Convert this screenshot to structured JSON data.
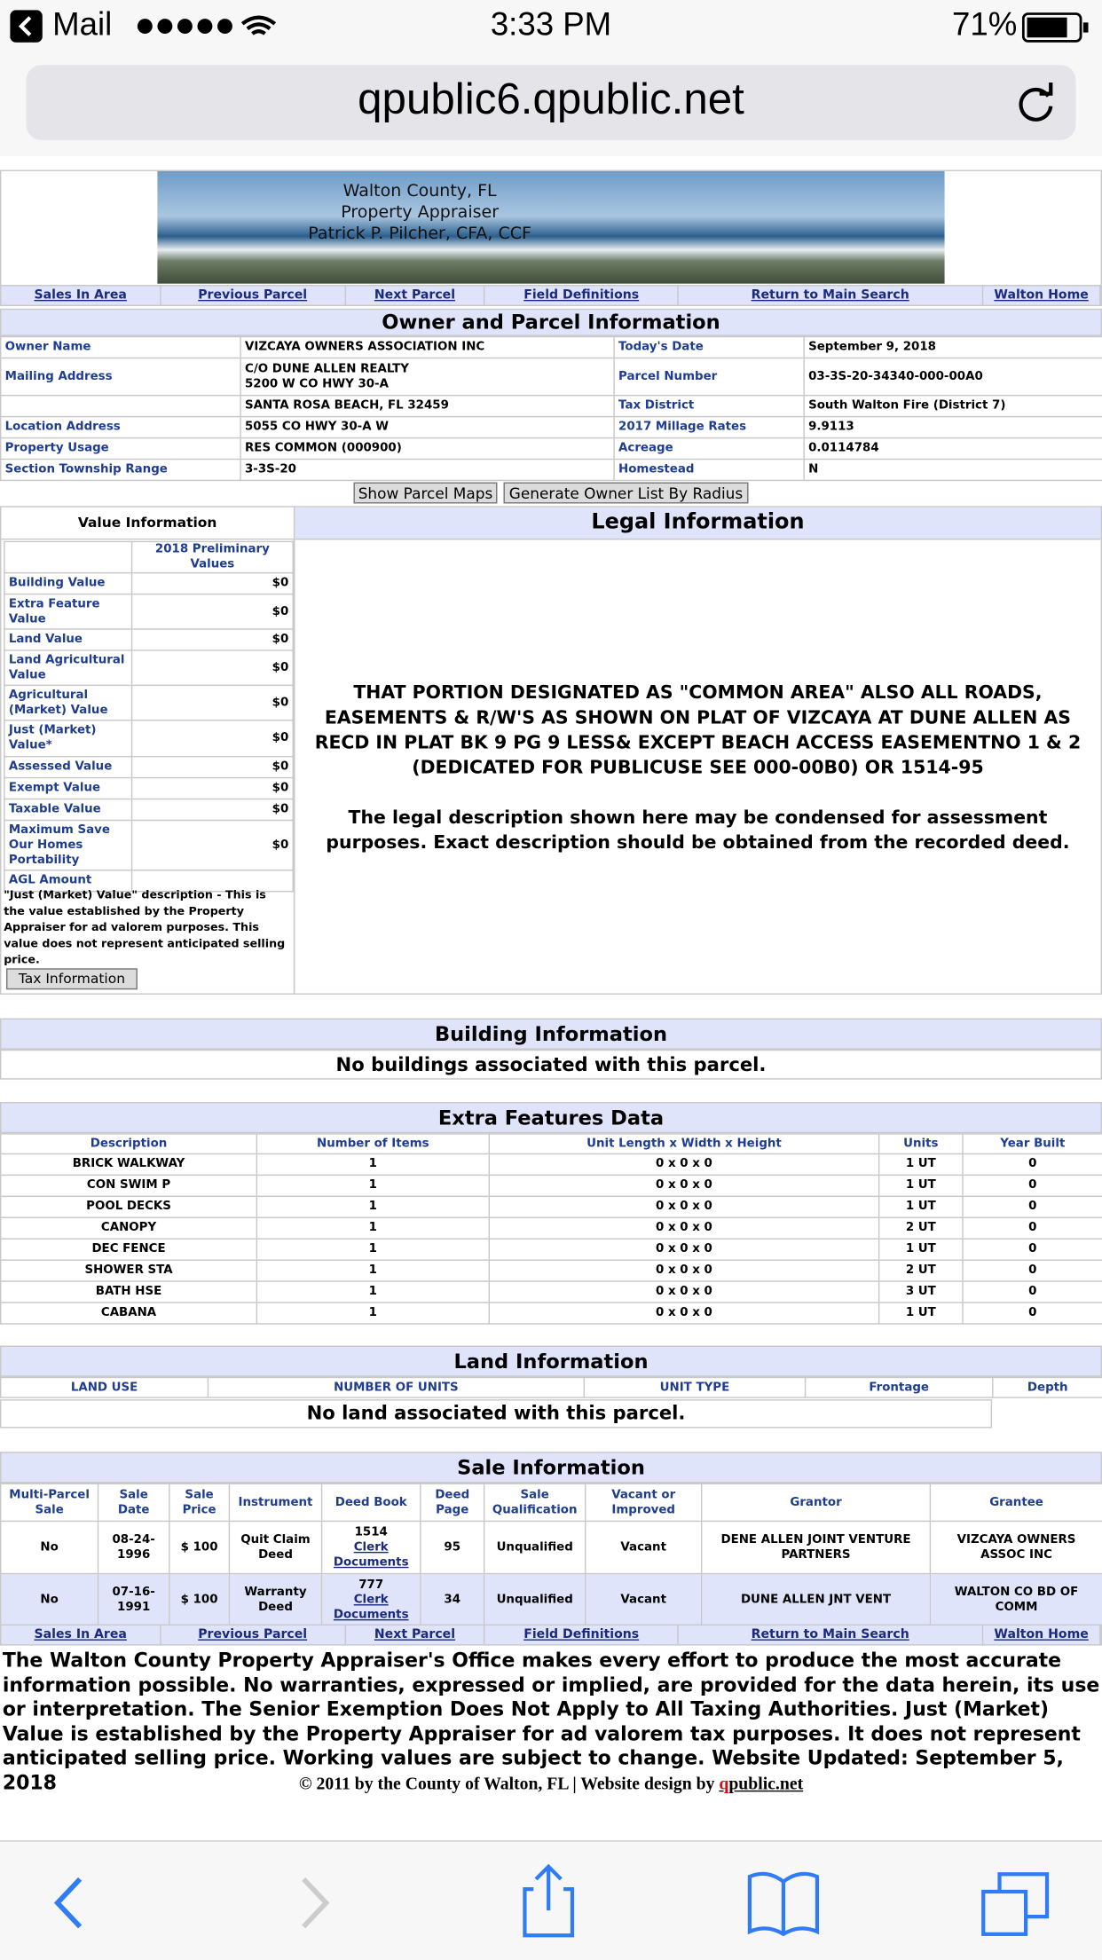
{
  "status_bar": {
    "back_app": "Mail",
    "time": "3:33 PM",
    "battery": "71%"
  },
  "address_bar": {
    "url": "qpublic6.qpublic.net"
  },
  "banner": {
    "lines": [
      "Walton County, FL",
      "Property Appraiser",
      "Patrick P. Pilcher, CFA, CCF"
    ]
  },
  "nav": {
    "links": [
      "Sales In Area",
      "Previous Parcel",
      "Next Parcel",
      "Field Definitions",
      "Return to Main Search",
      "Walton Home"
    ]
  },
  "owner_parcel": {
    "title": "Owner and Parcel Information",
    "rows": [
      [
        "Owner Name",
        "VIZCAYA OWNERS ASSOCIATION INC",
        "Today's Date",
        "September 9, 2018"
      ],
      [
        "Mailing Address",
        "C/O DUNE ALLEN REALTY\n5200 W CO HWY 30-A",
        "Parcel Number",
        "03-3S-20-34340-000-00A0"
      ],
      [
        null,
        "SANTA ROSA BEACH, FL 32459",
        "Tax District",
        "South Walton Fire (District 7)"
      ],
      [
        "Location Address",
        "5055 CO HWY 30-A W",
        "2017 Millage Rates",
        "9.9113"
      ],
      [
        "Property Usage",
        "RES COMMON (000900)",
        "Acreage",
        "0.0114784"
      ],
      [
        "Section Township Range",
        "3-3S-20",
        "Homestead",
        "N"
      ]
    ]
  },
  "buttons": [
    "Show Parcel Maps",
    "Generate Owner List By Radius"
  ],
  "value_information": {
    "title": "Value Information",
    "column_header": "2018 Preliminary Values",
    "rows": [
      [
        "Building Value",
        "$0"
      ],
      [
        "Extra Feature Value",
        "$0"
      ],
      [
        "Land Value",
        "$0"
      ],
      [
        "Land Agricultural Value",
        "$0"
      ],
      [
        "Agricultural (Market) Value",
        "$0"
      ],
      [
        "Just (Market) Value*",
        "$0"
      ],
      [
        "Assessed Value",
        "$0"
      ],
      [
        "Exempt Value",
        "$0"
      ],
      [
        "Taxable Value",
        "$0"
      ],
      [
        "Maximum Save Our Homes Portability",
        "$0"
      ],
      [
        "AGL Amount",
        null
      ]
    ],
    "note": "\"Just (Market) Value\" description - This is the value established by the Property Appraiser for ad valorem purposes. This value does not represent anticipated selling price.",
    "button": "Tax Information"
  },
  "legal_information": {
    "title": "Legal Information",
    "description": "THAT PORTION DESIGNATED AS \"COMMON AREA\" ALSO ALL ROADS, EASEMENTS & R/W'S AS SHOWN ON PLAT OF VIZCAYA AT DUNE ALLEN AS RECD IN PLAT BK 9 PG 9 LESS& EXCEPT BEACH ACCESS EASEMENTNO 1 & 2 (DEDICATED FOR PUBLICUSE SEE 000-00B0) OR 1514-95",
    "disclaimer": "The legal description shown here may be condensed for assessment purposes. Exact description should be obtained from the recorded deed."
  },
  "building_information": {
    "title": "Building Information",
    "message": "No buildings associated with this parcel."
  },
  "extra_features": {
    "title": "Extra Features Data",
    "headers": [
      "Description",
      "Number of Items",
      "Unit Length x Width x Height",
      "Units",
      "Year Built"
    ],
    "rows": [
      [
        "BRICK WALKWAY",
        "1",
        "0 x 0 x 0",
        "1 UT",
        "0"
      ],
      [
        "CON SWIM P",
        "1",
        "0 x 0 x 0",
        "1 UT",
        "0"
      ],
      [
        "POOL DECKS",
        "1",
        "0 x 0 x 0",
        "1 UT",
        "0"
      ],
      [
        "CANOPY",
        "1",
        "0 x 0 x 0",
        "2 UT",
        "0"
      ],
      [
        "DEC FENCE",
        "1",
        "0 x 0 x 0",
        "1 UT",
        "0"
      ],
      [
        "SHOWER STA",
        "1",
        "0 x 0 x 0",
        "2 UT",
        "0"
      ],
      [
        "BATH HSE",
        "1",
        "0 x 0 x 0",
        "3 UT",
        "0"
      ],
      [
        "CABANA",
        "1",
        "0 x 0 x 0",
        "1 UT",
        "0"
      ]
    ]
  },
  "land_information": {
    "title": "Land Information",
    "headers": [
      "LAND USE",
      "NUMBER OF UNITS",
      "UNIT TYPE",
      "Frontage",
      "Depth"
    ],
    "message": "No land associated with this parcel."
  },
  "sale_information": {
    "title": "Sale Information",
    "headers": [
      "Multi-Parcel Sale",
      "Sale Date",
      "Sale Price",
      "Instrument",
      "Deed Book",
      "Deed Page",
      "Sale Qualification",
      "Vacant or Improved",
      "Grantor",
      "Grantee"
    ],
    "rows": [
      [
        "No",
        "08-24-1996",
        "$ 100",
        "Quit Claim Deed",
        {
          "book": "1514",
          "link": "Clerk Documents"
        },
        "95",
        "Unqualified",
        "Vacant",
        "DENE ALLEN JOINT VENTURE PARTNERS",
        "VIZCAYA OWNERS ASSOC INC"
      ],
      [
        "No",
        "07-16-1991",
        "$ 100",
        "Warranty Deed",
        {
          "book": "777",
          "link": "Clerk Documents"
        },
        "34",
        "Unqualified",
        "Vacant",
        "DUNE ALLEN JNT VENT",
        "WALTON CO BD OF COMM"
      ]
    ]
  },
  "footer": {
    "disclaimer": "The Walton County Property Appraiser's Office makes every effort to produce the most accurate information possible. No warranties, expressed or implied, are provided for the data herein, its use or interpretation. The Senior Exemption Does Not Apply to All Taxing Authorities. Just (Market) Value is established by the Property Appraiser for ad valorem tax purposes. It does not represent anticipated selling price. Working values are subject to change. Website Updated: September 5, 2018",
    "copyright": "© 2011 by the County of Walton, FL | Website design by ",
    "brand_q": "q",
    "brand_rest": "public.net"
  }
}
